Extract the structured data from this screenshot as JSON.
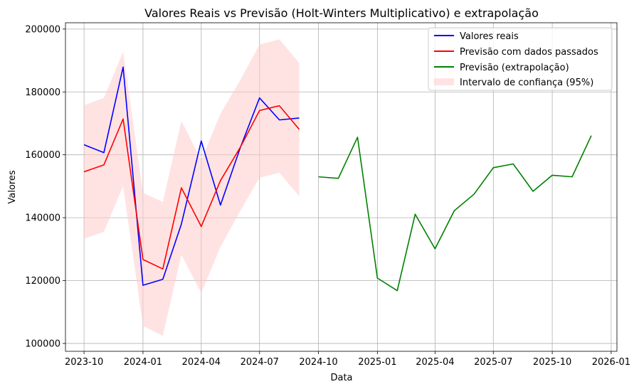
{
  "chart_data": {
    "type": "line",
    "title": "Valores Reais vs Previsão (Holt-Winters Multiplicativo) e extrapolação",
    "xlabel": "Data",
    "ylabel": "Valores",
    "grid": true,
    "legend_position": "top-right",
    "x_range": [
      "2023-09-02",
      "2026-01-10"
    ],
    "ylim": [
      97500,
      202000
    ],
    "x_ticks": [
      "2023-10-01",
      "2024-01-01",
      "2024-04-01",
      "2024-07-01",
      "2024-10-01",
      "2025-01-01",
      "2025-04-01",
      "2025-07-01",
      "2025-10-01",
      "2026-01-01"
    ],
    "x_tick_labels": [
      "2023-10",
      "2024-01",
      "2024-04",
      "2024-07",
      "2024-10",
      "2025-01",
      "2025-04",
      "2025-07",
      "2025-10",
      "2026-01"
    ],
    "y_ticks": [
      100000,
      120000,
      140000,
      160000,
      180000,
      200000
    ],
    "y_tick_labels": [
      "100000",
      "120000",
      "140000",
      "160000",
      "180000",
      "200000"
    ],
    "series": [
      {
        "name": "Valores reais",
        "color": "#0000ff",
        "x": [
          "2023-10-01",
          "2023-11-01",
          "2023-12-01",
          "2024-01-01",
          "2024-02-01",
          "2024-03-01",
          "2024-04-01",
          "2024-05-01",
          "2024-06-01",
          "2024-07-01",
          "2024-08-01",
          "2024-09-01"
        ],
        "values": [
          163200,
          160700,
          187900,
          118500,
          120400,
          138000,
          164400,
          144000,
          162300,
          178100,
          171100,
          171700
        ]
      },
      {
        "name": "Previsão com dados passados",
        "color": "#ff0000",
        "x": [
          "2023-10-01",
          "2023-11-01",
          "2023-12-01",
          "2024-01-01",
          "2024-02-01",
          "2024-03-01",
          "2024-04-01",
          "2024-05-01",
          "2024-06-01",
          "2024-07-01",
          "2024-08-01",
          "2024-09-01"
        ],
        "values": [
          154600,
          156800,
          171400,
          126700,
          123700,
          149500,
          137200,
          151800,
          162400,
          174100,
          175600,
          168100
        ]
      },
      {
        "name": "Previsão (extrapolação)",
        "color": "#008000",
        "x": [
          "2024-10-01",
          "2024-11-01",
          "2024-12-01",
          "2025-01-01",
          "2025-02-01",
          "2025-03-01",
          "2025-04-01",
          "2025-05-01",
          "2025-06-01",
          "2025-07-01",
          "2025-08-01",
          "2025-09-01",
          "2025-10-01",
          "2025-11-01",
          "2025-12-01"
        ],
        "values": [
          153000,
          152500,
          165600,
          120800,
          116800,
          141100,
          130100,
          142200,
          147500,
          155900,
          157100,
          148400,
          153500,
          153000,
          166100
        ]
      }
    ],
    "confidence_band": {
      "name": "Intervalo de confiança (95%)",
      "color": "#ffcccc",
      "x": [
        "2023-10-01",
        "2023-11-01",
        "2023-12-01",
        "2024-01-01",
        "2024-02-01",
        "2024-03-01",
        "2024-04-01",
        "2024-05-01",
        "2024-06-01",
        "2024-07-01",
        "2024-08-01",
        "2024-09-01"
      ],
      "lower": [
        133300,
        135500,
        150100,
        105600,
        102400,
        128200,
        116000,
        130700,
        142200,
        152700,
        154300,
        146800
      ],
      "upper": [
        175800,
        178100,
        192800,
        147900,
        145000,
        170800,
        158300,
        173100,
        183800,
        195100,
        196700,
        189200
      ]
    }
  }
}
